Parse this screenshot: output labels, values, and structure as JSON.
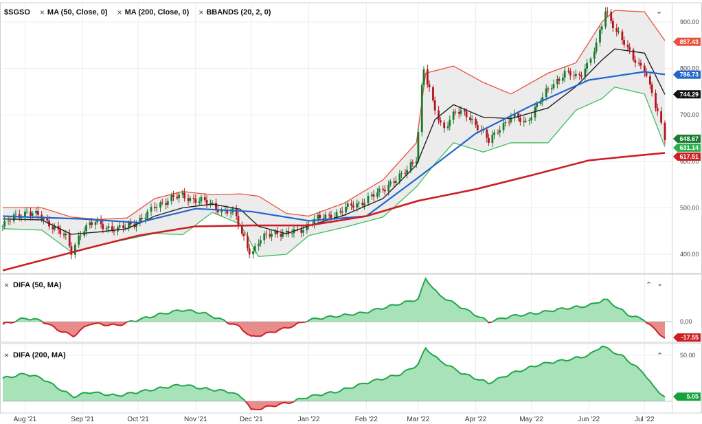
{
  "header": {
    "symbol": "$SGSO",
    "overlays": [
      {
        "label": "MA (50, Close, 0)"
      },
      {
        "label": "MA (200, Close, 0)"
      },
      {
        "label": "BBANDS (20, 2, 0)"
      }
    ],
    "remove_glyph": "×",
    "collapse_glyph": "⌄"
  },
  "panels": [
    {
      "title": "DIFA (50, MA)",
      "controls": [
        "⌃",
        "⌄"
      ]
    },
    {
      "title": "DIFA (200, MA)",
      "controls": [
        "⌃"
      ]
    }
  ],
  "colors": {
    "up": "#1a7a2e",
    "down": "#b3151d",
    "bb_upper": "#e8513b",
    "bb_lower": "#3fbf5a",
    "bb_fill": "#e9e9e9",
    "ma50": "#2266cc",
    "ma200": "#cc1f25",
    "bb_mid": "#222222",
    "difa_pos_line": "#1fa64a",
    "difa_pos_fill": "#a8e2b8",
    "difa_neg_line": "#cc1f25",
    "difa_neg_fill": "#e88b8b"
  },
  "chart_data": [
    {
      "type": "candlestick",
      "title": "$SGSO",
      "y_ticks": [
        "900.00",
        "800.00",
        "700.00",
        "600.00",
        "500.00",
        "400.00"
      ],
      "y_tick_values": [
        900,
        800,
        700,
        600,
        500,
        400
      ],
      "ylim": [
        360,
        940
      ],
      "x_ticks": [
        "Aug '21",
        "Sep '21",
        "Oct '21",
        "Nov '21",
        "Dec '21",
        "Jan '22",
        "Feb '22",
        "Mar '22",
        "Apr '22",
        "May '22",
        "Jun '22",
        "Jul '22"
      ],
      "x_tick_dates": [
        "2021-08-01",
        "2021-09-01",
        "2021-10-01",
        "2021-11-01",
        "2021-12-01",
        "2022-01-01",
        "2022-02-01",
        "2022-03-01",
        "2022-04-01",
        "2022-05-01",
        "2022-06-01",
        "2022-07-01"
      ],
      "date_range": [
        "2021-07-20",
        "2022-07-12"
      ],
      "close_path": [
        [
          "2021-07-20",
          460
        ],
        [
          "2021-07-26",
          480
        ],
        [
          "2021-08-02",
          492
        ],
        [
          "2021-08-09",
          480
        ],
        [
          "2021-08-16",
          462
        ],
        [
          "2021-08-23",
          435
        ],
        [
          "2021-08-26",
          405
        ],
        [
          "2021-09-01",
          455
        ],
        [
          "2021-09-08",
          468
        ],
        [
          "2021-09-15",
          458
        ],
        [
          "2021-09-20",
          452
        ],
        [
          "2021-09-27",
          465
        ],
        [
          "2021-10-04",
          478
        ],
        [
          "2021-10-11",
          505
        ],
        [
          "2021-10-18",
          520
        ],
        [
          "2021-10-25",
          525
        ],
        [
          "2021-11-01",
          518
        ],
        [
          "2021-11-08",
          510
        ],
        [
          "2021-11-15",
          495
        ],
        [
          "2021-11-22",
          488
        ],
        [
          "2021-11-26",
          445
        ],
        [
          "2021-12-01",
          400
        ],
        [
          "2021-12-06",
          430
        ],
        [
          "2021-12-13",
          450
        ],
        [
          "2021-12-20",
          442
        ],
        [
          "2021-12-27",
          452
        ],
        [
          "2022-01-03",
          470
        ],
        [
          "2022-01-10",
          482
        ],
        [
          "2022-01-17",
          488
        ],
        [
          "2022-01-24",
          505
        ],
        [
          "2022-01-31",
          515
        ],
        [
          "2022-02-07",
          530
        ],
        [
          "2022-02-14",
          555
        ],
        [
          "2022-02-21",
          570
        ],
        [
          "2022-02-28",
          610
        ],
        [
          "2022-03-02",
          720
        ],
        [
          "2022-03-04",
          800
        ],
        [
          "2022-03-08",
          735
        ],
        [
          "2022-03-14",
          670
        ],
        [
          "2022-03-21",
          705
        ],
        [
          "2022-03-28",
          700
        ],
        [
          "2022-04-04",
          665
        ],
        [
          "2022-04-08",
          642
        ],
        [
          "2022-04-14",
          675
        ],
        [
          "2022-04-21",
          695
        ],
        [
          "2022-04-28",
          685
        ],
        [
          "2022-05-05",
          725
        ],
        [
          "2022-05-12",
          765
        ],
        [
          "2022-05-19",
          790
        ],
        [
          "2022-05-26",
          780
        ],
        [
          "2022-06-01",
          815
        ],
        [
          "2022-06-06",
          858
        ],
        [
          "2022-06-10",
          925
        ],
        [
          "2022-06-17",
          875
        ],
        [
          "2022-06-24",
          825
        ],
        [
          "2022-07-01",
          800
        ],
        [
          "2022-07-06",
          730
        ],
        [
          "2022-07-12",
          650
        ]
      ],
      "bbands_upper": [
        [
          "2021-07-20",
          500
        ],
        [
          "2021-08-10",
          500
        ],
        [
          "2021-08-26",
          480
        ],
        [
          "2021-09-10",
          475
        ],
        [
          "2021-09-25",
          478
        ],
        [
          "2021-10-10",
          520
        ],
        [
          "2021-10-25",
          535
        ],
        [
          "2021-11-10",
          528
        ],
        [
          "2021-11-25",
          530
        ],
        [
          "2021-12-05",
          525
        ],
        [
          "2021-12-20",
          488
        ],
        [
          "2022-01-01",
          482
        ],
        [
          "2022-01-20",
          510
        ],
        [
          "2022-02-10",
          560
        ],
        [
          "2022-02-28",
          640
        ],
        [
          "2022-03-05",
          790
        ],
        [
          "2022-03-20",
          805
        ],
        [
          "2022-04-05",
          770
        ],
        [
          "2022-04-20",
          745
        ],
        [
          "2022-05-10",
          790
        ],
        [
          "2022-05-25",
          812
        ],
        [
          "2022-06-08",
          900
        ],
        [
          "2022-06-15",
          925
        ],
        [
          "2022-07-01",
          922
        ],
        [
          "2022-07-12",
          860
        ]
      ],
      "bbands_lower": [
        [
          "2021-07-20",
          455
        ],
        [
          "2021-08-10",
          452
        ],
        [
          "2021-08-26",
          405
        ],
        [
          "2021-09-10",
          420
        ],
        [
          "2021-09-25",
          432
        ],
        [
          "2021-10-10",
          445
        ],
        [
          "2021-10-25",
          442
        ],
        [
          "2021-11-10",
          490
        ],
        [
          "2021-11-25",
          465
        ],
        [
          "2021-12-05",
          395
        ],
        [
          "2021-12-20",
          400
        ],
        [
          "2022-01-01",
          440
        ],
        [
          "2022-01-20",
          458
        ],
        [
          "2022-02-10",
          480
        ],
        [
          "2022-02-28",
          545
        ],
        [
          "2022-03-10",
          595
        ],
        [
          "2022-03-20",
          640
        ],
        [
          "2022-04-05",
          620
        ],
        [
          "2022-04-20",
          640
        ],
        [
          "2022-05-10",
          640
        ],
        [
          "2022-05-25",
          710
        ],
        [
          "2022-06-08",
          735
        ],
        [
          "2022-06-15",
          760
        ],
        [
          "2022-07-01",
          745
        ],
        [
          "2022-07-12",
          631
        ]
      ],
      "bbands_mid": [
        [
          "2021-07-20",
          476
        ],
        [
          "2021-08-10",
          474
        ],
        [
          "2021-08-26",
          443
        ],
        [
          "2021-09-10",
          448
        ],
        [
          "2021-09-25",
          455
        ],
        [
          "2021-10-10",
          482
        ],
        [
          "2021-10-25",
          500
        ],
        [
          "2021-11-10",
          508
        ],
        [
          "2021-11-25",
          497
        ],
        [
          "2021-12-05",
          460
        ],
        [
          "2021-12-20",
          444
        ],
        [
          "2022-01-01",
          461
        ],
        [
          "2022-01-20",
          484
        ],
        [
          "2022-02-10",
          520
        ],
        [
          "2022-02-28",
          592
        ],
        [
          "2022-03-10",
          690
        ],
        [
          "2022-03-20",
          722
        ],
        [
          "2022-04-05",
          695
        ],
        [
          "2022-04-20",
          692
        ],
        [
          "2022-05-10",
          715
        ],
        [
          "2022-05-25",
          761
        ],
        [
          "2022-06-08",
          818
        ],
        [
          "2022-06-15",
          842
        ],
        [
          "2022-07-01",
          833
        ],
        [
          "2022-07-12",
          744
        ]
      ],
      "ma50": [
        [
          "2021-07-20",
          482
        ],
        [
          "2021-09-01",
          476
        ],
        [
          "2021-10-01",
          468
        ],
        [
          "2021-11-01",
          498
        ],
        [
          "2021-12-01",
          492
        ],
        [
          "2022-01-01",
          472
        ],
        [
          "2022-02-01",
          482
        ],
        [
          "2022-03-01",
          565
        ],
        [
          "2022-04-01",
          660
        ],
        [
          "2022-05-01",
          720
        ],
        [
          "2022-06-01",
          775
        ],
        [
          "2022-07-01",
          793
        ],
        [
          "2022-07-12",
          787
        ]
      ],
      "ma200": [
        [
          "2021-07-20",
          365
        ],
        [
          "2021-09-01",
          410
        ],
        [
          "2021-10-01",
          440
        ],
        [
          "2021-11-01",
          460
        ],
        [
          "2021-12-01",
          462
        ],
        [
          "2022-01-01",
          462
        ],
        [
          "2022-02-01",
          482
        ],
        [
          "2022-03-01",
          515
        ],
        [
          "2022-04-01",
          540
        ],
        [
          "2022-05-01",
          570
        ],
        [
          "2022-06-01",
          602
        ],
        [
          "2022-07-01",
          614
        ],
        [
          "2022-07-12",
          618
        ]
      ],
      "last_values": [
        {
          "label": "857.43",
          "value": 857.43,
          "series": "bb_upper"
        },
        {
          "label": "786.73",
          "value": 786.73,
          "series": "ma50"
        },
        {
          "label": "744.29",
          "value": 744.29,
          "series": "bb_mid"
        },
        {
          "label": "648.67",
          "value": 648.67,
          "series": "close"
        },
        {
          "label": "631.14",
          "value": 631.14,
          "series": "bb_lower"
        },
        {
          "label": "617.51",
          "value": 617.51,
          "series": "ma200"
        }
      ]
    },
    {
      "type": "area",
      "title": "DIFA (50, MA)",
      "y_ticks": [
        "0.00"
      ],
      "y_tick_values": [
        0
      ],
      "ylim": [
        -22,
        52
      ],
      "values": [
        [
          "2021-07-20",
          -3
        ],
        [
          "2021-08-01",
          4
        ],
        [
          "2021-08-10",
          1
        ],
        [
          "2021-08-18",
          -8
        ],
        [
          "2021-08-27",
          -16
        ],
        [
          "2021-09-05",
          -2
        ],
        [
          "2021-09-20",
          -4
        ],
        [
          "2021-10-01",
          2
        ],
        [
          "2021-10-12",
          8
        ],
        [
          "2021-10-25",
          13
        ],
        [
          "2021-11-05",
          10
        ],
        [
          "2021-11-15",
          2
        ],
        [
          "2021-11-25",
          -6
        ],
        [
          "2021-12-01",
          -17
        ],
        [
          "2021-12-08",
          -14
        ],
        [
          "2021-12-20",
          -7
        ],
        [
          "2022-01-01",
          2
        ],
        [
          "2022-01-15",
          6
        ],
        [
          "2022-01-31",
          10
        ],
        [
          "2022-02-15",
          18
        ],
        [
          "2022-03-01",
          25
        ],
        [
          "2022-03-05",
          48
        ],
        [
          "2022-03-12",
          30
        ],
        [
          "2022-03-25",
          15
        ],
        [
          "2022-04-08",
          0
        ],
        [
          "2022-04-20",
          6
        ],
        [
          "2022-05-05",
          10
        ],
        [
          "2022-05-20",
          15
        ],
        [
          "2022-06-01",
          18
        ],
        [
          "2022-06-10",
          25
        ],
        [
          "2022-06-22",
          8
        ],
        [
          "2022-07-01",
          2
        ],
        [
          "2022-07-06",
          -8
        ],
        [
          "2022-07-12",
          -18
        ]
      ],
      "last_value": {
        "label": "-17.55",
        "value": -17.55
      }
    },
    {
      "type": "area",
      "title": "DIFA (200, MA)",
      "y_ticks": [
        "50.00"
      ],
      "y_tick_values": [
        50
      ],
      "ylim": [
        -12,
        62
      ],
      "values": [
        [
          "2021-07-20",
          25
        ],
        [
          "2021-08-01",
          30
        ],
        [
          "2021-08-10",
          25
        ],
        [
          "2021-08-27",
          5
        ],
        [
          "2021-09-05",
          10
        ],
        [
          "2021-09-20",
          6
        ],
        [
          "2021-10-01",
          10
        ],
        [
          "2021-10-15",
          15
        ],
        [
          "2021-10-25",
          18
        ],
        [
          "2021-11-05",
          14
        ],
        [
          "2021-11-20",
          10
        ],
        [
          "2021-11-28",
          2
        ],
        [
          "2021-12-01",
          -10
        ],
        [
          "2021-12-10",
          -6
        ],
        [
          "2021-12-20",
          -2
        ],
        [
          "2022-01-01",
          5
        ],
        [
          "2022-01-15",
          10
        ],
        [
          "2022-02-01",
          20
        ],
        [
          "2022-02-20",
          30
        ],
        [
          "2022-03-01",
          40
        ],
        [
          "2022-03-05",
          58
        ],
        [
          "2022-03-12",
          45
        ],
        [
          "2022-03-25",
          30
        ],
        [
          "2022-04-08",
          20
        ],
        [
          "2022-04-20",
          30
        ],
        [
          "2022-05-05",
          40
        ],
        [
          "2022-05-20",
          45
        ],
        [
          "2022-06-01",
          50
        ],
        [
          "2022-06-08",
          60
        ],
        [
          "2022-06-20",
          48
        ],
        [
          "2022-07-01",
          30
        ],
        [
          "2022-07-06",
          15
        ],
        [
          "2022-07-12",
          5
        ]
      ],
      "last_value": {
        "label": "5.05",
        "value": 5.05
      }
    }
  ]
}
